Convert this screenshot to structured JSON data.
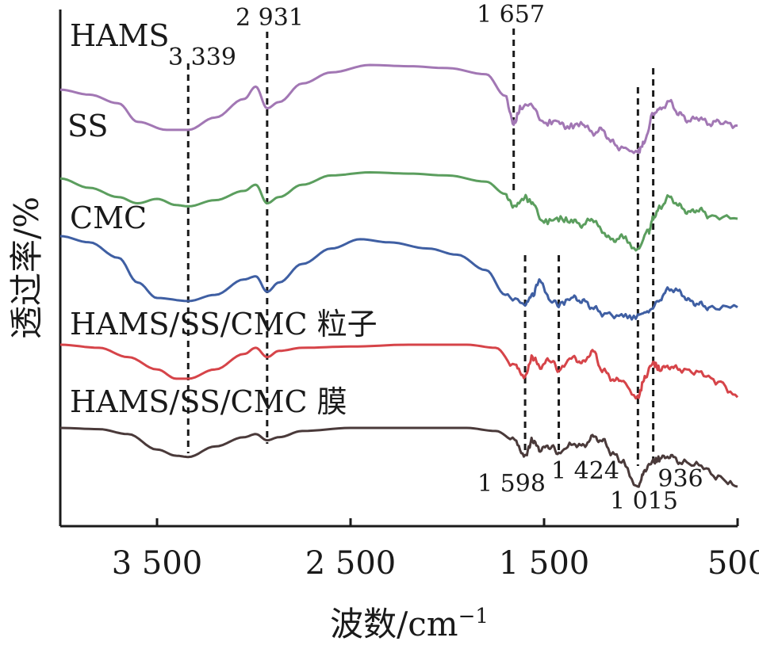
{
  "chart_data": {
    "type": "line",
    "xlabel": "波数/cm",
    "xlabel_superscript": "−1",
    "ylabel": "透过率/%",
    "xlim": [
      4000,
      500
    ],
    "x_reversed": true,
    "x_ticks": [
      {
        "value": 3500,
        "label": "3 500"
      },
      {
        "value": 2500,
        "label": "2 500"
      },
      {
        "value": 1500,
        "label": "1 500"
      },
      {
        "value": 500,
        "label": "500"
      }
    ],
    "y_ticks_shown": false,
    "grid": false,
    "legend": "none (series labeled inline above each curve)",
    "series": [
      {
        "name": "HAMS",
        "color": "#a277b4",
        "points": [
          [
            4000,
            0.4
          ],
          [
            3850,
            0.48
          ],
          [
            3700,
            0.62
          ],
          [
            3600,
            0.92
          ],
          [
            3450,
            1.05
          ],
          [
            3339,
            1.05
          ],
          [
            3200,
            0.85
          ],
          [
            3050,
            0.55
          ],
          [
            2990,
            0.35
          ],
          [
            2931,
            0.7
          ],
          [
            2870,
            0.6
          ],
          [
            2750,
            0.3
          ],
          [
            2600,
            0.12
          ],
          [
            2400,
            0.0
          ],
          [
            2200,
            0.02
          ],
          [
            2000,
            0.05
          ],
          [
            1800,
            0.15
          ],
          [
            1700,
            0.5
          ],
          [
            1657,
            0.95
          ],
          [
            1620,
            0.7
          ],
          [
            1560,
            0.65
          ],
          [
            1500,
            0.95
          ],
          [
            1424,
            0.9
          ],
          [
            1380,
            1.0
          ],
          [
            1300,
            0.95
          ],
          [
            1250,
            1.1
          ],
          [
            1200,
            1.05
          ],
          [
            1150,
            1.25
          ],
          [
            1100,
            1.35
          ],
          [
            1015,
            1.4
          ],
          [
            980,
            1.25
          ],
          [
            936,
            0.8
          ],
          [
            900,
            0.7
          ],
          [
            850,
            0.6
          ],
          [
            800,
            0.8
          ],
          [
            750,
            0.9
          ],
          [
            700,
            0.85
          ],
          [
            650,
            0.95
          ],
          [
            600,
            0.92
          ],
          [
            500,
            0.98
          ]
        ]
      },
      {
        "name": "SS",
        "color": "#5b9e5e",
        "points": [
          [
            4000,
            0.35
          ],
          [
            3850,
            0.5
          ],
          [
            3700,
            0.65
          ],
          [
            3600,
            0.75
          ],
          [
            3500,
            0.68
          ],
          [
            3400,
            0.78
          ],
          [
            3339,
            0.8
          ],
          [
            3200,
            0.7
          ],
          [
            3050,
            0.55
          ],
          [
            2990,
            0.45
          ],
          [
            2931,
            0.75
          ],
          [
            2870,
            0.65
          ],
          [
            2750,
            0.45
          ],
          [
            2600,
            0.3
          ],
          [
            2400,
            0.25
          ],
          [
            2200,
            0.27
          ],
          [
            2000,
            0.3
          ],
          [
            1800,
            0.4
          ],
          [
            1700,
            0.6
          ],
          [
            1657,
            0.8
          ],
          [
            1600,
            0.65
          ],
          [
            1560,
            0.75
          ],
          [
            1500,
            1.05
          ],
          [
            1424,
            1.0
          ],
          [
            1350,
            1.05
          ],
          [
            1300,
            1.1
          ],
          [
            1250,
            1.0
          ],
          [
            1200,
            1.2
          ],
          [
            1150,
            1.35
          ],
          [
            1100,
            1.3
          ],
          [
            1015,
            1.5
          ],
          [
            960,
            1.2
          ],
          [
            936,
            1.0
          ],
          [
            900,
            0.8
          ],
          [
            850,
            0.65
          ],
          [
            800,
            0.8
          ],
          [
            750,
            0.9
          ],
          [
            700,
            0.85
          ],
          [
            650,
            0.95
          ],
          [
            500,
            1.0
          ]
        ]
      },
      {
        "name": "CMC",
        "color": "#3f5fa3",
        "points": [
          [
            4000,
            0.0
          ],
          [
            3850,
            0.1
          ],
          [
            3700,
            0.35
          ],
          [
            3600,
            0.75
          ],
          [
            3500,
            1.0
          ],
          [
            3339,
            1.05
          ],
          [
            3200,
            0.95
          ],
          [
            3050,
            0.7
          ],
          [
            2990,
            0.65
          ],
          [
            2931,
            0.9
          ],
          [
            2870,
            0.75
          ],
          [
            2750,
            0.45
          ],
          [
            2600,
            0.2
          ],
          [
            2450,
            0.05
          ],
          [
            2300,
            0.1
          ],
          [
            2100,
            0.2
          ],
          [
            1950,
            0.3
          ],
          [
            1800,
            0.55
          ],
          [
            1700,
            0.95
          ],
          [
            1598,
            1.1
          ],
          [
            1560,
            0.95
          ],
          [
            1520,
            0.7
          ],
          [
            1470,
            1.05
          ],
          [
            1424,
            1.1
          ],
          [
            1350,
            1.0
          ],
          [
            1300,
            1.05
          ],
          [
            1250,
            1.15
          ],
          [
            1200,
            1.25
          ],
          [
            1100,
            1.3
          ],
          [
            1015,
            1.3
          ],
          [
            960,
            1.25
          ],
          [
            900,
            1.0
          ],
          [
            850,
            0.85
          ],
          [
            800,
            0.9
          ],
          [
            750,
            1.05
          ],
          [
            700,
            1.1
          ],
          [
            650,
            1.15
          ],
          [
            500,
            1.15
          ]
        ]
      },
      {
        "name": "HAMS/SS/CMC 粒子",
        "color": "#d64449",
        "points": [
          [
            4000,
            0.0
          ],
          [
            3800,
            0.05
          ],
          [
            3650,
            0.2
          ],
          [
            3500,
            0.4
          ],
          [
            3400,
            0.55
          ],
          [
            3339,
            0.55
          ],
          [
            3200,
            0.4
          ],
          [
            3050,
            0.15
          ],
          [
            2990,
            0.05
          ],
          [
            2931,
            0.2
          ],
          [
            2870,
            0.1
          ],
          [
            2750,
            0.05
          ],
          [
            2500,
            0.03
          ],
          [
            2200,
            0.0
          ],
          [
            1900,
            0.0
          ],
          [
            1750,
            0.05
          ],
          [
            1650,
            0.35
          ],
          [
            1598,
            0.5
          ],
          [
            1560,
            0.2
          ],
          [
            1520,
            0.35
          ],
          [
            1470,
            0.25
          ],
          [
            1424,
            0.4
          ],
          [
            1350,
            0.2
          ],
          [
            1300,
            0.3
          ],
          [
            1250,
            0.1
          ],
          [
            1200,
            0.4
          ],
          [
            1150,
            0.55
          ],
          [
            1100,
            0.6
          ],
          [
            1015,
            0.85
          ],
          [
            980,
            0.55
          ],
          [
            936,
            0.3
          ],
          [
            900,
            0.4
          ],
          [
            850,
            0.35
          ],
          [
            800,
            0.4
          ],
          [
            700,
            0.45
          ],
          [
            600,
            0.6
          ],
          [
            500,
            0.85
          ]
        ]
      },
      {
        "name": "HAMS/SS/CMC 膜",
        "color": "#4a3a3a",
        "points": [
          [
            4000,
            0.0
          ],
          [
            3800,
            0.02
          ],
          [
            3650,
            0.1
          ],
          [
            3500,
            0.35
          ],
          [
            3400,
            0.45
          ],
          [
            3339,
            0.47
          ],
          [
            3200,
            0.3
          ],
          [
            3050,
            0.15
          ],
          [
            2990,
            0.1
          ],
          [
            2931,
            0.2
          ],
          [
            2870,
            0.15
          ],
          [
            2750,
            0.05
          ],
          [
            2500,
            0.0
          ],
          [
            2200,
            0.0
          ],
          [
            1900,
            0.0
          ],
          [
            1750,
            0.05
          ],
          [
            1650,
            0.2
          ],
          [
            1598,
            0.45
          ],
          [
            1560,
            0.2
          ],
          [
            1520,
            0.35
          ],
          [
            1470,
            0.3
          ],
          [
            1424,
            0.4
          ],
          [
            1350,
            0.25
          ],
          [
            1300,
            0.3
          ],
          [
            1250,
            0.15
          ],
          [
            1200,
            0.2
          ],
          [
            1150,
            0.4
          ],
          [
            1100,
            0.55
          ],
          [
            1015,
            0.95
          ],
          [
            980,
            0.7
          ],
          [
            936,
            0.55
          ],
          [
            900,
            0.5
          ],
          [
            850,
            0.45
          ],
          [
            800,
            0.55
          ],
          [
            700,
            0.6
          ],
          [
            600,
            0.8
          ],
          [
            500,
            0.95
          ]
        ]
      }
    ],
    "annotations": [
      {
        "x": 3339,
        "label": "3 339"
      },
      {
        "x": 2931,
        "label": "2 931"
      },
      {
        "x": 1657,
        "label": "1 657"
      },
      {
        "x": 1598,
        "label": "1 598"
      },
      {
        "x": 1424,
        "label": "1 424"
      },
      {
        "x": 1015,
        "label": "1 015"
      },
      {
        "x": 936,
        "label": "936"
      }
    ]
  }
}
